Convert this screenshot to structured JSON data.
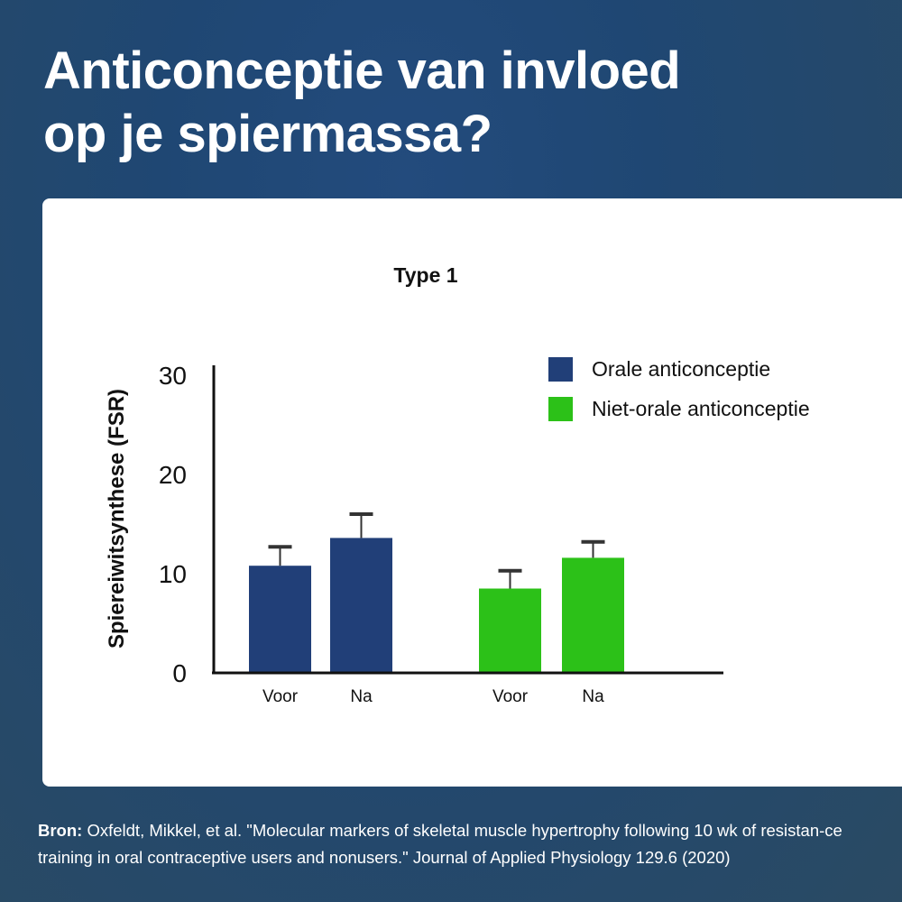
{
  "headline": {
    "line1": "Anticonceptie van invloed",
    "line2": "op je spiermassa?"
  },
  "colors": {
    "background": "#24496f",
    "oral": "#213f78",
    "non_oral": "#2cc118",
    "text_white": "#ffffff",
    "axis": "#111111"
  },
  "chart_data": {
    "type": "bar",
    "title": "Type 1",
    "ylabel": "Spiereiwitsynthese (FSR)",
    "xlabel": "",
    "ylim": [
      0,
      30
    ],
    "yticks": [
      "0",
      "10",
      "20",
      "30"
    ],
    "groups": [
      {
        "series": "Orale anticonceptie",
        "categories": [
          "Voor",
          "Na"
        ],
        "values": [
          10.8,
          13.6
        ],
        "error_upper": [
          12.7,
          16.0
        ]
      },
      {
        "series": "Niet-orale anticonceptie",
        "categories": [
          "Voor",
          "Na"
        ],
        "values": [
          8.5,
          11.6
        ],
        "error_upper": [
          10.3,
          13.2
        ]
      }
    ],
    "legend": {
      "placement": "top-right",
      "items": [
        "Orale anticonceptie",
        "Niet-orale anticonceptie"
      ]
    }
  },
  "source": {
    "label": "Bron:",
    "text": "Oxfeldt, Mikkel, et al. \"Molecular markers of skeletal muscle hypertrophy following 10 wk of resistan-ce training in oral contraceptive users and nonusers.\" Journal of Applied Physiology 129.6 (2020)"
  }
}
